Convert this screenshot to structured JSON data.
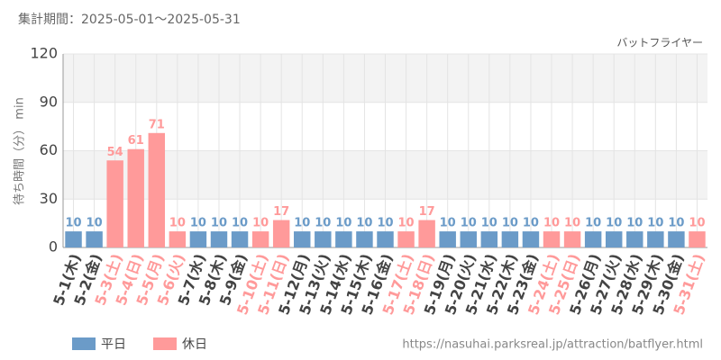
{
  "chart_data": {
    "type": "bar",
    "title": "集計期間：2025-05-01～2025-05-31",
    "subtitle": "バットフライヤー",
    "y_label": "待ち時間（分） min",
    "source": "https://nasuhai.parksreal.jp/attraction/batflyer.html",
    "categories": [
      "5-1(木)",
      "5-2(金)",
      "5-3(土)",
      "5-4(日)",
      "5-5(月)",
      "5-6(火)",
      "5-7(水)",
      "5-8(木)",
      "5-9(金)",
      "5-10(土)",
      "5-11(日)",
      "5-12(月)",
      "5-13(火)",
      "5-14(水)",
      "5-15(木)",
      "5-16(金)",
      "5-17(土)",
      "5-18(日)",
      "5-19(月)",
      "5-20(火)",
      "5-21(水)",
      "5-22(木)",
      "5-23(金)",
      "5-24(土)",
      "5-25(日)",
      "5-26(月)",
      "5-27(火)",
      "5-28(水)",
      "5-29(木)",
      "5-30(金)",
      "5-31(土)"
    ],
    "series": [
      {
        "name": "平日",
        "color": "#6b9bc8",
        "values": [
          10,
          10,
          null,
          null,
          null,
          null,
          10,
          10,
          10,
          null,
          null,
          10,
          10,
          10,
          10,
          10,
          null,
          null,
          10,
          10,
          10,
          10,
          10,
          null,
          null,
          10,
          10,
          10,
          10,
          10,
          null
        ]
      },
      {
        "name": "休日",
        "color": "#ff9a9a",
        "values": [
          null,
          null,
          54,
          61,
          71,
          10,
          null,
          null,
          null,
          10,
          17,
          null,
          null,
          null,
          null,
          null,
          10,
          17,
          null,
          null,
          null,
          null,
          null,
          10,
          10,
          null,
          null,
          null,
          null,
          null,
          10
        ]
      }
    ],
    "ylim": [
      0,
      120
    ],
    "yticks": [
      0,
      30,
      60,
      90,
      120
    ],
    "grid": true
  }
}
